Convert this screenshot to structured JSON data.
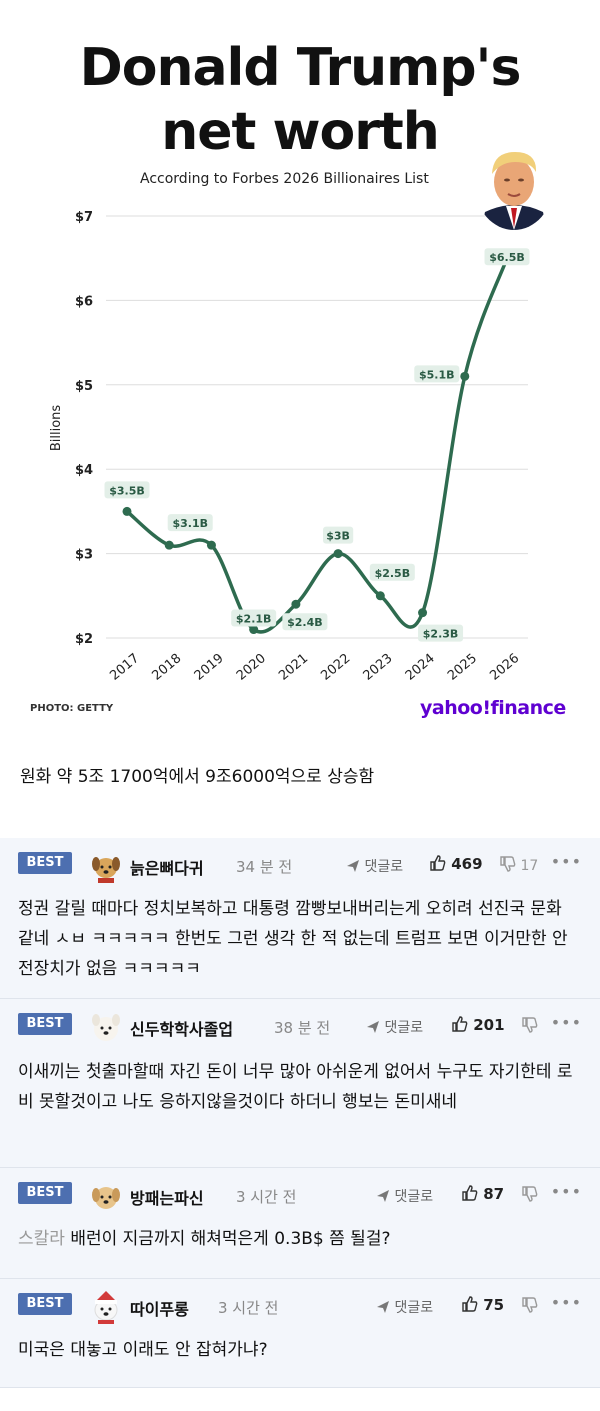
{
  "chart_data": {
    "type": "line",
    "title_line1": "Donald Trump's",
    "title_line2": "net worth",
    "subtitle": "According to Forbes 2026 Billionaires List",
    "ylabel": "Billions",
    "x": [
      "2017",
      "2018",
      "2019",
      "2020",
      "2021",
      "2022",
      "2023",
      "2024",
      "2025",
      "2026"
    ],
    "values": [
      3.5,
      3.1,
      3.1,
      2.1,
      2.4,
      3.0,
      2.5,
      2.3,
      5.1,
      6.5
    ],
    "labels": [
      "$3.5B",
      "$3.1B",
      "$2.1B",
      "$2.4B",
      "$3B",
      "$2.5B",
      "$2.3B",
      "$5.1B",
      "$6.5B"
    ],
    "yticks": [
      "$2",
      "$3",
      "$4",
      "$5",
      "$6",
      "$7"
    ],
    "ylim": [
      2,
      7
    ],
    "grid": true,
    "line_color": "#2e6b4f",
    "label_bg": "#e3efe8",
    "photo_credit": "PHOTO: GETTY",
    "source_logo": "yahoo!finance"
  },
  "caption": "원화  약 5조 1700억에서 9조6000억으로 상승함",
  "comments": [
    {
      "badge": "BEST",
      "nickname": "늙은뼈다귀",
      "time": "34 분 전",
      "reply_label": "댓글로",
      "likes": "469",
      "dislikes": "17",
      "avatar_icon": "dog-avatar-icon",
      "body": "정권 갈릴 때마다 정치보복하고 대통령 깜빵보내버리는게 오히려 선진국 문화 같네 ㅅㅂ ㅋㅋㅋㅋㅋ 한번도 그런 생각 한 적 없는데 트럼프 보면 이거만한 안전장치가 없음 ㅋㅋㅋㅋㅋ"
    },
    {
      "badge": "BEST",
      "nickname": "신두학학사졸업",
      "time": "38 분 전",
      "reply_label": "댓글로",
      "likes": "201",
      "dislikes": "",
      "avatar_icon": "white-dog-avatar-icon",
      "body": "이새끼는 첫출마할때 자긴 돈이 너무 많아 아쉬운게 없어서 누구도 자기한테 로비 못할것이고 나도 응하지않을것이다 하더니 행보는 돈미새네"
    },
    {
      "badge": "BEST",
      "nickname": "방패는파신",
      "time": "3 시간 전",
      "reply_label": "댓글로",
      "likes": "87",
      "dislikes": "",
      "avatar_icon": "puppy-avatar-icon",
      "quote": "스칼라",
      "body": "배런이 지금까지 해쳐먹은게 0.3B$ 쯤 될걸?"
    },
    {
      "badge": "BEST",
      "nickname": "따이푸롱",
      "time": "3 시간 전",
      "reply_label": "댓글로",
      "likes": "75",
      "dislikes": "",
      "avatar_icon": "santa-dog-avatar-icon",
      "body": "미국은 대놓고 이래도 안 잡혀가냐?"
    }
  ]
}
